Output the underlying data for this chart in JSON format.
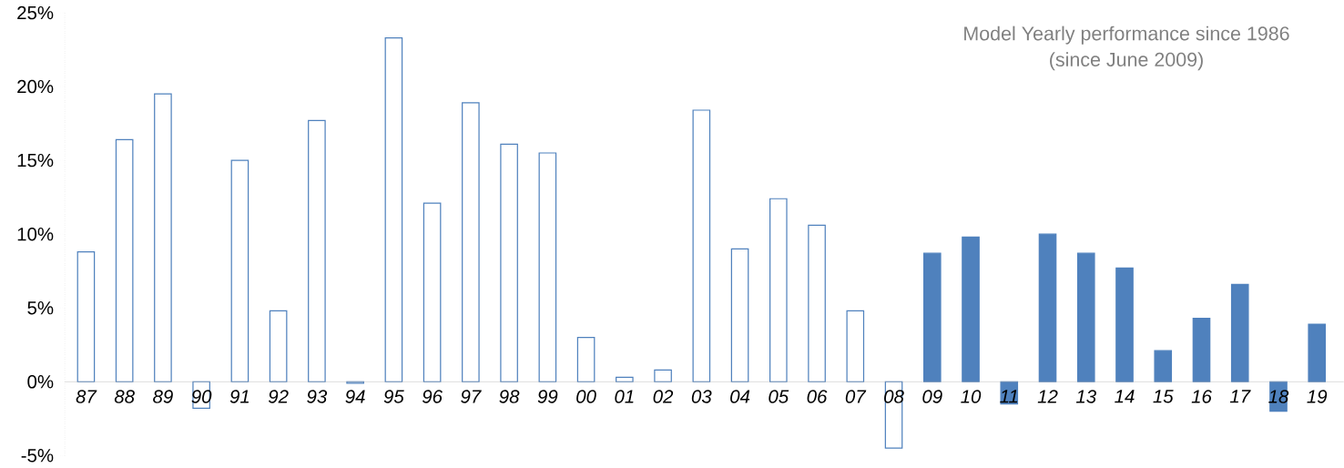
{
  "chart_data": {
    "type": "bar",
    "title": "Model Yearly performance since 1986",
    "subtitle": "(since June 2009)",
    "categories": [
      "87",
      "88",
      "89",
      "90",
      "91",
      "92",
      "93",
      "94",
      "95",
      "96",
      "97",
      "98",
      "99",
      "00",
      "01",
      "02",
      "03",
      "04",
      "05",
      "06",
      "07",
      "08",
      "09",
      "10",
      "11",
      "12",
      "13",
      "14",
      "15",
      "16",
      "17",
      "18",
      "19"
    ],
    "values": [
      8.8,
      16.4,
      19.5,
      -1.8,
      15.0,
      4.8,
      17.7,
      -0.1,
      23.3,
      12.1,
      18.9,
      16.1,
      15.5,
      3.0,
      0.3,
      0.8,
      18.4,
      9.0,
      12.4,
      10.6,
      4.8,
      -4.5,
      8.7,
      9.8,
      -1.5,
      10.0,
      8.7,
      7.7,
      2.1,
      4.3,
      6.6,
      -2.0,
      3.9
    ],
    "color": "#4f81bd",
    "colors": [
      "#ffffff",
      "#ffffff",
      "#ffffff",
      "#ffffff",
      "#ffffff",
      "#ffffff",
      "#ffffff",
      "#ffffff",
      "#ffffff",
      "#ffffff",
      "#ffffff",
      "#ffffff",
      "#ffffff",
      "#ffffff",
      "#ffffff",
      "#ffffff",
      "#ffffff",
      "#ffffff",
      "#ffffff",
      "#ffffff",
      "#ffffff",
      "#ffffff",
      "#4f81bd",
      "#4f81bd",
      "#4f81bd",
      "#4f81bd",
      "#4f81bd",
      "#4f81bd",
      "#4f81bd",
      "#4f81bd",
      "#4f81bd",
      "#4f81bd",
      "#4f81bd"
    ],
    "ylim": [
      -5,
      25
    ],
    "yticks": [
      {
        "value": -5,
        "label": "-5%"
      },
      {
        "value": 0,
        "label": "0%"
      },
      {
        "value": 5,
        "label": "5%"
      },
      {
        "value": 10,
        "label": "10%"
      },
      {
        "value": 15,
        "label": "15%"
      },
      {
        "value": 20,
        "label": "20%"
      },
      {
        "value": 25,
        "label": "25%"
      }
    ],
    "grid": false
  }
}
